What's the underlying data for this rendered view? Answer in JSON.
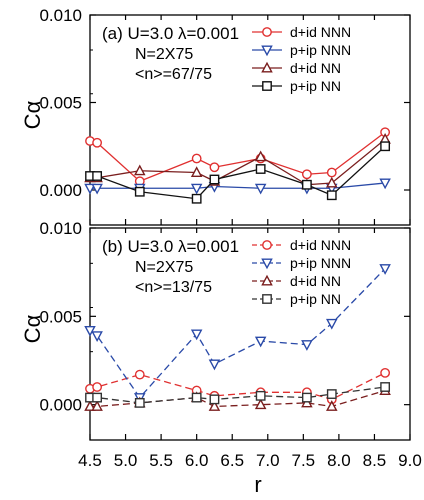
{
  "chart_data": [
    {
      "panel": "(a)",
      "type": "line",
      "annotation_lines": [
        "U=3.0 λ=0.001",
        "N=2X75",
        "<n>=67/75"
      ],
      "xlabel": "r",
      "ylabel": "Cα",
      "xlim": [
        4.5,
        9.0
      ],
      "ylim": [
        -0.002,
        0.01
      ],
      "yticks": [
        "0.000",
        "0.005",
        "0.010"
      ],
      "ytick_values": [
        0.0,
        0.005,
        0.01
      ],
      "grid": false,
      "legend_position": "top-right",
      "series": [
        {
          "name": "d+id NNN",
          "color": "#e03030",
          "marker": "circle",
          "dash": "solid",
          "x": [
            4.5,
            4.6,
            5.2,
            6.0,
            6.25,
            6.9,
            7.55,
            7.9,
            8.65
          ],
          "y": [
            0.0028,
            0.0027,
            0.0005,
            0.0018,
            0.0013,
            0.0018,
            0.0009,
            0.001,
            0.0033
          ]
        },
        {
          "name": "p+ip NNN",
          "color": "#2a4aa8",
          "marker": "triangle-down",
          "dash": "solid",
          "x": [
            4.5,
            4.6,
            5.2,
            6.0,
            6.25,
            6.9,
            7.55,
            7.9,
            8.65
          ],
          "y": [
            0.0001,
            0.0001,
            0.0001,
            0.0001,
            0.0002,
            0.0001,
            0.0001,
            0.0001,
            0.0004
          ]
        },
        {
          "name": "d+id NN",
          "color": "#7a1e1e",
          "marker": "triangle-up",
          "dash": "solid",
          "x": [
            4.5,
            4.6,
            5.2,
            6.0,
            6.25,
            6.9,
            7.55,
            7.9,
            8.65
          ],
          "y": [
            0.0007,
            0.0007,
            0.0011,
            0.001,
            0.0005,
            0.0019,
            0.0003,
            0.0004,
            0.0029
          ]
        },
        {
          "name": "p+ip NN",
          "color": "#111111",
          "marker": "square",
          "dash": "solid",
          "x": [
            4.5,
            4.6,
            5.2,
            6.0,
            6.25,
            6.9,
            7.55,
            7.9,
            8.65
          ],
          "y": [
            0.0008,
            0.0008,
            -0.0001,
            -0.0005,
            0.0006,
            0.0012,
            0.0003,
            -0.0003,
            0.0025
          ]
        }
      ]
    },
    {
      "panel": "(b)",
      "type": "line",
      "annotation_lines": [
        "U=3.0 λ=0.001",
        "N=2X75",
        "<n>=13/75"
      ],
      "xlabel": "r",
      "ylabel": "Cα",
      "xlim": [
        4.5,
        9.0
      ],
      "ylim": [
        -0.002,
        0.01
      ],
      "yticks": [
        "0.000",
        "0.005",
        "0.010"
      ],
      "ytick_values": [
        0.0,
        0.005,
        0.01
      ],
      "xticks": [
        "4.5",
        "5.0",
        "5.5",
        "6.0",
        "6.5",
        "7.0",
        "7.5",
        "8.0",
        "8.5",
        "9.0"
      ],
      "xtick_values": [
        4.5,
        5.0,
        5.5,
        6.0,
        6.5,
        7.0,
        7.5,
        8.0,
        8.5,
        9.0
      ],
      "grid": false,
      "legend_position": "top-right",
      "series": [
        {
          "name": "d+id NNN",
          "color": "#e03030",
          "marker": "circle",
          "dash": "dashed",
          "x": [
            4.5,
            4.6,
            5.2,
            6.0,
            6.25,
            6.9,
            7.55,
            7.9,
            8.65
          ],
          "y": [
            0.0009,
            0.001,
            0.0017,
            0.0008,
            0.0005,
            0.0007,
            0.0007,
            0.0003,
            0.0018
          ]
        },
        {
          "name": "p+ip NNN",
          "color": "#2a4aa8",
          "marker": "triangle-down",
          "dash": "dashed",
          "x": [
            4.5,
            4.6,
            5.2,
            6.0,
            6.25,
            6.9,
            7.55,
            7.9,
            8.65
          ],
          "y": [
            0.0042,
            0.0039,
            0.0004,
            0.004,
            0.0023,
            0.0036,
            0.0034,
            0.0046,
            0.0077
          ]
        },
        {
          "name": "d+id NN",
          "color": "#7a1e1e",
          "marker": "triangle-up",
          "dash": "dashed",
          "x": [
            4.5,
            4.6,
            5.2,
            6.0,
            6.25,
            6.9,
            7.55,
            7.9,
            8.65
          ],
          "y": [
            -0.0001,
            -0.0001,
            0.0001,
            0.0004,
            -0.0001,
            0.0,
            0.0001,
            -0.0001,
            0.0008
          ]
        },
        {
          "name": "p+ip NN",
          "color": "#333333",
          "marker": "square",
          "dash": "dashed",
          "x": [
            4.5,
            4.6,
            5.2,
            6.0,
            6.25,
            6.9,
            7.55,
            7.9,
            8.65
          ],
          "y": [
            0.0004,
            0.0004,
            0.0001,
            0.0004,
            0.0003,
            0.0005,
            0.0004,
            0.0006,
            0.001
          ]
        }
      ]
    }
  ]
}
